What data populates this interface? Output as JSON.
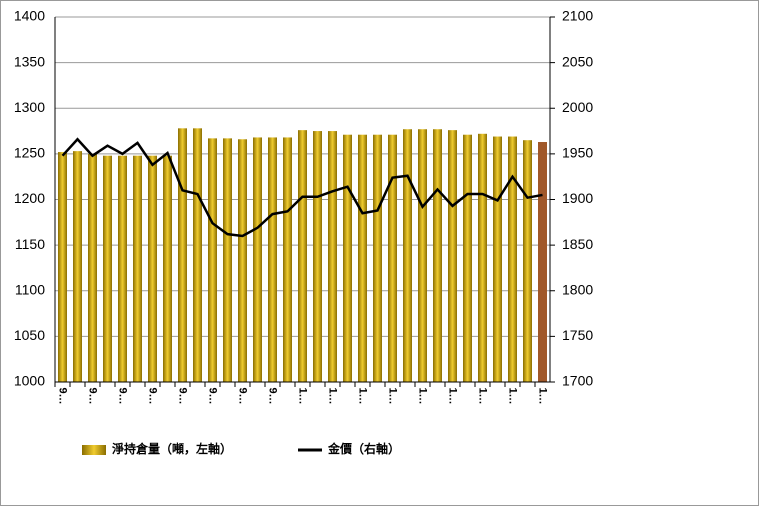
{
  "chart_data": {
    "type": "bar_line",
    "categories": [
      "9…",
      null,
      "9…",
      null,
      "9…",
      null,
      "9…",
      null,
      "9…",
      null,
      "9…",
      null,
      "9…",
      null,
      "9…",
      null,
      "1…",
      null,
      "1…",
      null,
      "1…",
      null,
      "1…",
      null,
      "1…",
      null,
      "1…",
      null,
      "1…",
      null,
      "1…",
      null,
      "1…"
    ],
    "series": [
      {
        "name": "淨持倉量（噸，左軸）",
        "type": "bar",
        "color": "#c9a200",
        "colors": [
          "#c9a200",
          "#c9a200",
          "#c9a200",
          "#c9a200",
          "#c9a200",
          "#c9a200",
          "#c9a200",
          "#c9a200",
          "#c9a200",
          "#c9a200",
          "#c9a200",
          "#c9a200",
          "#c9a200",
          "#c9a200",
          "#c9a200",
          "#c9a200",
          "#c9a200",
          "#c9a200",
          "#c9a200",
          "#c9a200",
          "#c9a200",
          "#c9a200",
          "#c9a200",
          "#c9a200",
          "#c9a200",
          "#c9a200",
          "#c9a200",
          "#c9a200",
          "#c9a200",
          "#c9a200",
          "#c9a200",
          "#c9a200",
          "#a0582a"
        ],
        "values": [
          1252,
          1253,
          1250,
          1248,
          1248,
          1248,
          1248,
          1248,
          1278,
          1278,
          1267,
          1267,
          1266,
          1268,
          1268,
          1268,
          1276,
          1275,
          1275,
          1271,
          1271,
          1271,
          1271,
          1277,
          1277,
          1277,
          1276,
          1271,
          1272,
          1269,
          1269,
          1265,
          1263
        ]
      },
      {
        "name": "金價（右軸）",
        "type": "line",
        "axis": "y2",
        "color": "#000000",
        "values": [
          1948,
          1966,
          1948,
          1959,
          1950,
          1962,
          1938,
          1951,
          1910,
          1906,
          1874,
          1862,
          1860,
          1869,
          1884,
          1887,
          1903,
          1903,
          1909,
          1914,
          1885,
          1888,
          1924,
          1926,
          1892,
          1911,
          1893,
          1906,
          1906,
          1899,
          1925,
          1902,
          1905
        ]
      }
    ],
    "ylim": [
      1000,
      1400
    ],
    "yticks": [
      1000,
      1050,
      1100,
      1150,
      1200,
      1250,
      1300,
      1350,
      1400
    ],
    "y2lim": [
      1700,
      2100
    ],
    "y2ticks": [
      1700,
      1750,
      1800,
      1850,
      1900,
      1950,
      2000,
      2050,
      2100
    ],
    "grid": true,
    "legend": "bottom"
  }
}
